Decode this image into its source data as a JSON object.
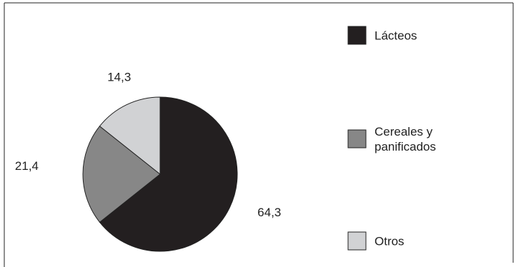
{
  "chart_data": {
    "type": "pie",
    "title": "",
    "slices": [
      {
        "name": "Lácteos",
        "value": 64.3,
        "label": "64,3",
        "color": "#231f20"
      },
      {
        "name": "Cereales y panificados",
        "value": 21.4,
        "label": "21,4",
        "color": "#878787"
      },
      {
        "name": "Otros",
        "value": 14.3,
        "label": "14,3",
        "color": "#d1d2d4"
      }
    ],
    "legend": {
      "position": "right",
      "items": [
        {
          "lines": [
            "Lácteos"
          ],
          "color": "#231f20"
        },
        {
          "lines": [
            "Cereales y",
            "panificados"
          ],
          "color": "#878787"
        },
        {
          "lines": [
            "Otros"
          ],
          "color": "#d1d2d4"
        }
      ]
    }
  }
}
